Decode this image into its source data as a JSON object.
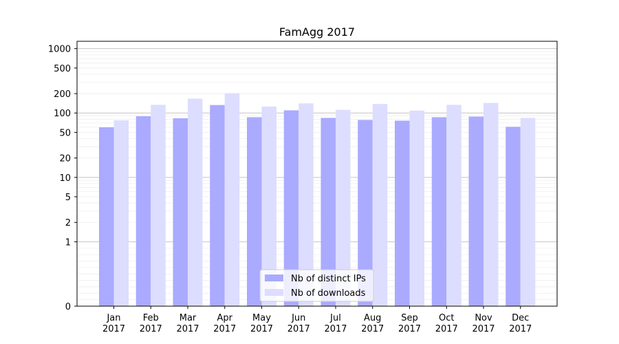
{
  "chart_data": {
    "type": "bar",
    "title": "FamAgg 2017",
    "xlabel": "",
    "ylabel": "",
    "y_scale": "symlog",
    "ylim": [
      0,
      1300
    ],
    "categories": [
      "Jan\n2017",
      "Feb\n2017",
      "Mar\n2017",
      "Apr\n2017",
      "May\n2017",
      "Jun\n2017",
      "Jul\n2017",
      "Aug\n2017",
      "Sep\n2017",
      "Oct\n2017",
      "Nov\n2017",
      "Dec\n2017"
    ],
    "category_labels": [
      [
        "Jan",
        "2017"
      ],
      [
        "Feb",
        "2017"
      ],
      [
        "Mar",
        "2017"
      ],
      [
        "Apr",
        "2017"
      ],
      [
        "May",
        "2017"
      ],
      [
        "Jun",
        "2017"
      ],
      [
        "Jul",
        "2017"
      ],
      [
        "Aug",
        "2017"
      ],
      [
        "Sep",
        "2017"
      ],
      [
        "Oct",
        "2017"
      ],
      [
        "Nov",
        "2017"
      ],
      [
        "Dec",
        "2017"
      ]
    ],
    "y_ticks": [
      0,
      1,
      2,
      5,
      10,
      20,
      50,
      100,
      200,
      500,
      1000
    ],
    "y_tick_labels": [
      "0",
      "1",
      "2",
      "5",
      "10",
      "20",
      "50",
      "100",
      "200",
      "500",
      "1000"
    ],
    "series": [
      {
        "name": "Nb of distinct IPs",
        "color": "#aaaaff",
        "values": [
          60,
          89,
          83,
          133,
          86,
          110,
          84,
          78,
          76,
          86,
          88,
          61
        ]
      },
      {
        "name": "Nb of downloads",
        "color": "#ddddff",
        "values": [
          77,
          134,
          167,
          203,
          126,
          141,
          112,
          138,
          109,
          134,
          143,
          84
        ]
      }
    ],
    "legend_position": "lower-center",
    "grid": true
  }
}
